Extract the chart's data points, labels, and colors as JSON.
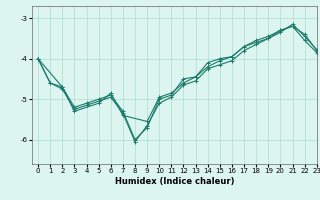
{
  "xlabel": "Humidex (Indice chaleur)",
  "bg_color": "#ddf5f0",
  "grid_color": "#aaddcc",
  "line_color": "#1a7a6a",
  "xlim": [
    -0.5,
    23
  ],
  "ylim": [
    -6.6,
    -2.7
  ],
  "yticks": [
    -6,
    -5,
    -4,
    -3
  ],
  "xticks": [
    0,
    1,
    2,
    3,
    4,
    5,
    6,
    7,
    8,
    9,
    10,
    11,
    12,
    13,
    14,
    15,
    16,
    17,
    18,
    19,
    20,
    21,
    22,
    23
  ],
  "line1_x": [
    0,
    1,
    2,
    3,
    4,
    5,
    6,
    7,
    8,
    9,
    10,
    11,
    12,
    13,
    14,
    15,
    16,
    17,
    18,
    19,
    20,
    21,
    22,
    23
  ],
  "line1_y": [
    -4.0,
    -4.6,
    -4.75,
    -5.25,
    -5.15,
    -5.05,
    -4.95,
    -5.35,
    -6.05,
    -5.65,
    -5.1,
    -4.95,
    -4.65,
    -4.55,
    -4.25,
    -4.15,
    -4.05,
    -3.8,
    -3.65,
    -3.5,
    -3.35,
    -3.15,
    -3.45,
    -3.78
  ],
  "line2_x": [
    0,
    2,
    3,
    5,
    6,
    7,
    9,
    10,
    11,
    12,
    13,
    14,
    15,
    16,
    17,
    18,
    19,
    20,
    21,
    22,
    23
  ],
  "line2_y": [
    -4.0,
    -4.7,
    -5.3,
    -5.1,
    -4.85,
    -5.4,
    -5.55,
    -4.95,
    -4.85,
    -4.6,
    -4.45,
    -4.2,
    -4.05,
    -3.95,
    -3.7,
    -3.55,
    -3.45,
    -3.3,
    -3.2,
    -3.55,
    -3.85
  ],
  "line3_x": [
    0,
    1,
    2,
    3,
    4,
    5,
    6,
    7,
    8,
    9,
    10,
    11,
    12,
    13,
    14,
    15,
    16,
    17,
    18,
    19,
    20,
    21,
    22,
    23
  ],
  "line3_y": [
    -4.0,
    -4.6,
    -4.7,
    -5.2,
    -5.1,
    -5.0,
    -4.9,
    -5.3,
    -6.0,
    -5.7,
    -5.0,
    -4.9,
    -4.5,
    -4.45,
    -4.1,
    -4.0,
    -3.95,
    -3.7,
    -3.6,
    -3.5,
    -3.3,
    -3.2,
    -3.4,
    -3.8
  ]
}
